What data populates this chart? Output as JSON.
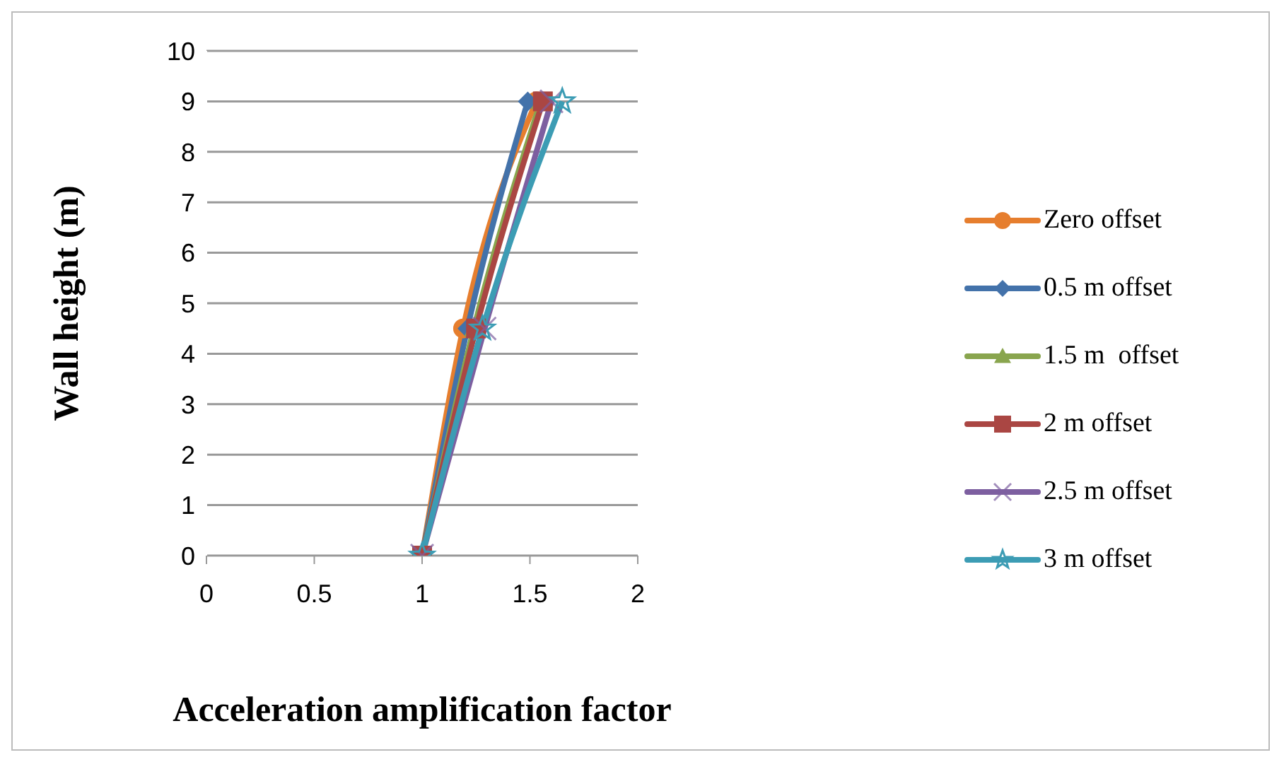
{
  "chart_data": {
    "type": "line",
    "xlabel": "Acceleration amplification factor",
    "ylabel": "Wall height (m)",
    "xlim": [
      0,
      2
    ],
    "xticks": [
      0,
      0.5,
      1,
      1.5,
      2
    ],
    "ylim": [
      0,
      10
    ],
    "yticks": [
      0,
      1,
      2,
      3,
      4,
      5,
      6,
      7,
      8,
      9,
      10
    ],
    "grid": "y",
    "legend": "right",
    "series": [
      {
        "name": "Zero offset",
        "color": "#e67e2e",
        "marker": "circle",
        "x": [
          1,
          1.19,
          1.53
        ],
        "values": [
          0,
          4.5,
          9
        ]
      },
      {
        "name": "0.5 m offset",
        "color": "#4372aa",
        "marker": "diamond",
        "x": [
          1,
          1.21,
          1.49
        ],
        "values": [
          0,
          4.5,
          9
        ]
      },
      {
        "name": "1.5 m  offset",
        "color": "#89a54e",
        "marker": "triangle",
        "x": [
          1,
          1.24,
          1.55
        ],
        "values": [
          0,
          4.5,
          9
        ]
      },
      {
        "name": "2 m offset",
        "color": "#aa4643",
        "marker": "square",
        "x": [
          1,
          1.25,
          1.56
        ],
        "values": [
          0,
          4.5,
          9
        ]
      },
      {
        "name": "2.5 m offset",
        "color": "#7d5fa0",
        "marker": "cross",
        "x": [
          1,
          1.29,
          1.6
        ],
        "values": [
          0,
          4.5,
          9
        ]
      },
      {
        "name": "3 m offset",
        "color": "#3c9cb4",
        "marker": "star",
        "x": [
          1,
          1.28,
          1.65
        ],
        "values": [
          0,
          4.5,
          9
        ]
      }
    ]
  }
}
